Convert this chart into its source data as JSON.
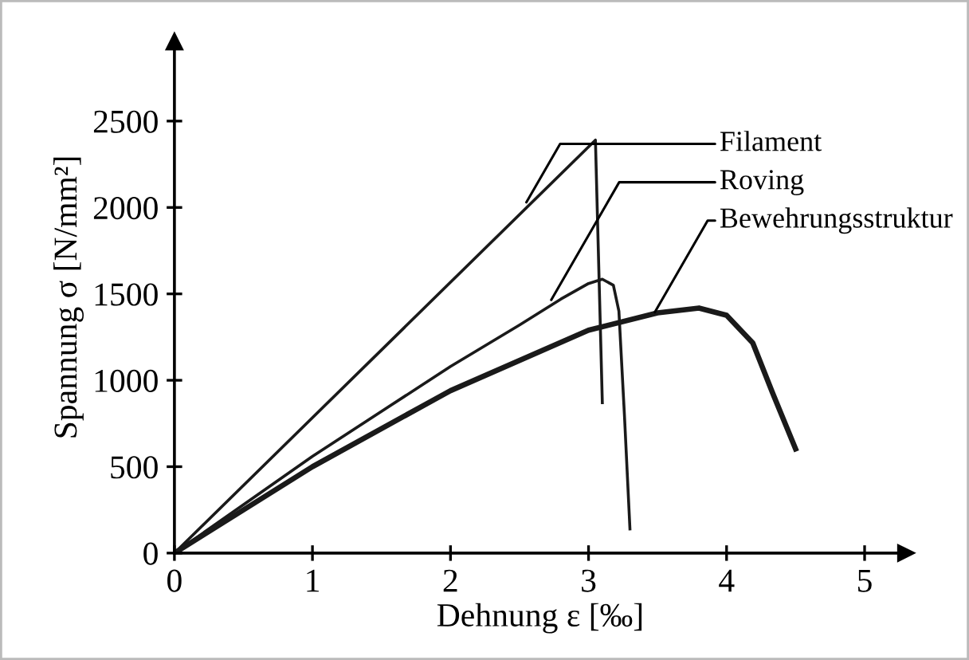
{
  "chart_data": {
    "type": "line",
    "xlabel": "Dehnung ε [‰]",
    "ylabel": "Spannung σ [N/mm²]",
    "xlim": [
      0,
      5.3
    ],
    "ylim": [
      0,
      2960
    ],
    "xticks": [
      0,
      1,
      2,
      3,
      4,
      5
    ],
    "yticks": [
      0,
      500,
      1000,
      1500,
      2000,
      2500
    ],
    "grid": false,
    "legend": false,
    "marker": "none",
    "line_style": "solid",
    "series": [
      {
        "color": "#1a1a1a",
        "x": [
          0,
          3.05,
          3.1
        ],
        "values": [
          0,
          2390,
          870
        ]
      },
      {
        "color": "#1a1a1a",
        "x": [
          0,
          1,
          2,
          2.5,
          2.8,
          3.0,
          3.1,
          3.18,
          3.22,
          3.26,
          3.3
        ],
        "values": [
          0,
          560,
          1080,
          1320,
          1470,
          1560,
          1585,
          1550,
          1400,
          800,
          140
        ]
      },
      {
        "color": "#1a1a1a",
        "x": [
          0,
          1,
          2,
          3,
          3.5,
          3.8,
          4.0,
          4.19,
          4.33,
          4.5
        ],
        "values": [
          0,
          500,
          940,
          1290,
          1390,
          1418,
          1376,
          1216,
          933,
          603
        ]
      }
    ],
    "annotations": [
      {
        "text": "Filament",
        "x": 2.55,
        "y": 2030
      },
      {
        "text": "Roving",
        "x": 2.73,
        "y": 1465
      },
      {
        "text": "Bewehrungsstruktur",
        "x": 3.48,
        "y": 1394
      }
    ]
  }
}
